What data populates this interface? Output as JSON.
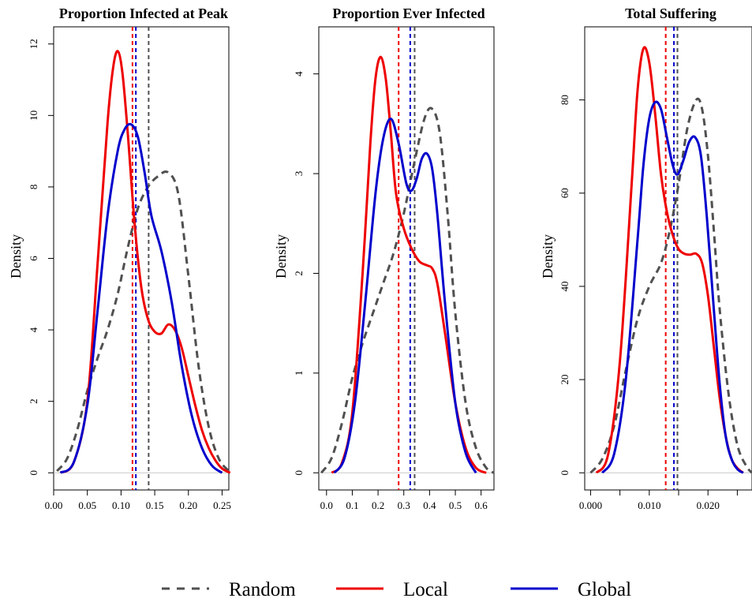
{
  "legend": {
    "items": [
      {
        "key": "random",
        "label": "Random",
        "color": "#505050",
        "dash": true
      },
      {
        "key": "local",
        "label": "Local",
        "color": "#ee0000",
        "dash": false
      },
      {
        "key": "global",
        "label": "Global",
        "color": "#0000cc",
        "dash": false
      }
    ]
  },
  "chart_data": [
    {
      "type": "line",
      "title": "Proportion Infected at Peak",
      "xlabel": "",
      "ylabel": "Density",
      "xlim": [
        0,
        0.26
      ],
      "ylim": [
        0,
        12
      ],
      "xticks": [
        0.0,
        0.05,
        0.1,
        0.15,
        0.2,
        0.25
      ],
      "xtick_labels": [
        "0.00",
        "0.05",
        "0.10",
        "0.15",
        "0.20",
        "0.25"
      ],
      "yticks": [
        0,
        2,
        4,
        6,
        8,
        10,
        12
      ],
      "ytick_labels": [
        "0",
        "2",
        "4",
        "6",
        "8",
        "10",
        "12"
      ],
      "means": {
        "random": 0.141,
        "local": 0.117,
        "global": 0.122
      },
      "series": [
        {
          "key": "random",
          "x": [
            0.005,
            0.02,
            0.035,
            0.05,
            0.065,
            0.08,
            0.095,
            0.11,
            0.125,
            0.14,
            0.155,
            0.17,
            0.185,
            0.2,
            0.215,
            0.23,
            0.245,
            0.26
          ],
          "y": [
            0.05,
            0.4,
            1.2,
            2.3,
            3.2,
            4.0,
            5.0,
            6.3,
            7.4,
            8.0,
            8.3,
            8.4,
            7.8,
            5.5,
            3.0,
            1.3,
            0.4,
            0.05
          ]
        },
        {
          "key": "local",
          "x": [
            0.01,
            0.03,
            0.05,
            0.065,
            0.08,
            0.088,
            0.095,
            0.102,
            0.11,
            0.12,
            0.13,
            0.14,
            0.15,
            0.16,
            0.17,
            0.18,
            0.19,
            0.2,
            0.21,
            0.22,
            0.23,
            0.24,
            0.25,
            0.262
          ],
          "y": [
            0.0,
            0.3,
            2.0,
            5.8,
            9.8,
            11.3,
            11.8,
            11.2,
            9.5,
            7.0,
            5.2,
            4.3,
            3.95,
            3.9,
            4.15,
            4.0,
            3.5,
            2.7,
            1.9,
            1.2,
            0.7,
            0.35,
            0.12,
            0.0
          ]
        },
        {
          "key": "global",
          "x": [
            0.01,
            0.03,
            0.05,
            0.065,
            0.08,
            0.095,
            0.105,
            0.115,
            0.125,
            0.135,
            0.145,
            0.16,
            0.175,
            0.19,
            0.205,
            0.22,
            0.235,
            0.25
          ],
          "y": [
            0.0,
            0.3,
            1.9,
            4.5,
            7.2,
            9.0,
            9.6,
            9.75,
            9.4,
            8.4,
            7.2,
            6.2,
            4.8,
            3.0,
            1.6,
            0.7,
            0.2,
            0.0
          ]
        }
      ]
    },
    {
      "type": "line",
      "title": "Proportion Ever Infected",
      "xlabel": "",
      "ylabel": "Density",
      "xlim": [
        -0.03,
        0.65
      ],
      "ylim": [
        0,
        4.3
      ],
      "xticks": [
        0.0,
        0.1,
        0.2,
        0.3,
        0.4,
        0.5,
        0.6
      ],
      "xtick_labels": [
        "0.0",
        "0.1",
        "0.2",
        "0.3",
        "0.4",
        "0.5",
        "0.6"
      ],
      "yticks": [
        0,
        1,
        2,
        3,
        4
      ],
      "ytick_labels": [
        "0",
        "1",
        "2",
        "3",
        "4"
      ],
      "means": {
        "random": 0.342,
        "local": 0.28,
        "global": 0.325
      },
      "series": [
        {
          "key": "random",
          "x": [
            -0.02,
            0.02,
            0.06,
            0.1,
            0.14,
            0.18,
            0.22,
            0.26,
            0.3,
            0.34,
            0.38,
            0.41,
            0.44,
            0.47,
            0.5,
            0.54,
            0.58,
            0.62,
            0.65
          ],
          "y": [
            0.0,
            0.15,
            0.5,
            0.95,
            1.3,
            1.6,
            1.9,
            2.2,
            2.6,
            3.1,
            3.55,
            3.65,
            3.4,
            2.6,
            1.6,
            0.7,
            0.25,
            0.05,
            0.0
          ]
        },
        {
          "key": "local",
          "x": [
            0.02,
            0.06,
            0.1,
            0.14,
            0.17,
            0.19,
            0.21,
            0.23,
            0.25,
            0.27,
            0.3,
            0.33,
            0.36,
            0.39,
            0.41,
            0.43,
            0.46,
            0.5,
            0.54,
            0.58,
            0.62
          ],
          "y": [
            0.0,
            0.1,
            0.6,
            2.0,
            3.3,
            3.95,
            4.17,
            3.95,
            3.4,
            2.8,
            2.45,
            2.25,
            2.12,
            2.08,
            2.05,
            1.9,
            1.4,
            0.7,
            0.25,
            0.05,
            0.0
          ]
        },
        {
          "key": "global",
          "x": [
            0.03,
            0.07,
            0.11,
            0.15,
            0.19,
            0.22,
            0.25,
            0.28,
            0.31,
            0.33,
            0.35,
            0.37,
            0.39,
            0.41,
            0.43,
            0.46,
            0.5,
            0.54,
            0.58
          ],
          "y": [
            0.0,
            0.15,
            0.7,
            1.7,
            2.8,
            3.35,
            3.55,
            3.3,
            2.9,
            2.83,
            2.95,
            3.15,
            3.2,
            3.05,
            2.6,
            1.7,
            0.7,
            0.2,
            0.0
          ]
        }
      ]
    },
    {
      "type": "line",
      "title": "Total Suffering",
      "xlabel": "",
      "ylabel": "Density",
      "xlim": [
        -0.001,
        0.0275
      ],
      "ylim": [
        0,
        92
      ],
      "xticks": [
        0.0,
        0.005,
        0.01,
        0.015,
        0.02,
        0.025
      ],
      "xtick_labels": [
        "0.000",
        "",
        "0.010",
        "",
        "0.020",
        ""
      ],
      "yticks": [
        0,
        20,
        40,
        60,
        80
      ],
      "ytick_labels": [
        "0",
        "20",
        "40",
        "60",
        "80"
      ],
      "means": {
        "random": 0.0148,
        "local": 0.0128,
        "global": 0.0142
      },
      "series": [
        {
          "key": "random",
          "x": [
            0.0,
            0.002,
            0.004,
            0.006,
            0.008,
            0.01,
            0.012,
            0.0135,
            0.015,
            0.0165,
            0.018,
            0.019,
            0.02,
            0.021,
            0.022,
            0.0235,
            0.025,
            0.0265,
            0.0275
          ],
          "y": [
            0.0,
            3.0,
            10.0,
            22.0,
            33.0,
            40.0,
            45.0,
            52.0,
            62.0,
            74.0,
            80.0,
            78.0,
            68.0,
            52.0,
            35.0,
            17.0,
            6.0,
            1.5,
            0.0
          ]
        },
        {
          "key": "local",
          "x": [
            0.001,
            0.003,
            0.005,
            0.007,
            0.008,
            0.009,
            0.01,
            0.011,
            0.012,
            0.013,
            0.014,
            0.015,
            0.016,
            0.017,
            0.018,
            0.019,
            0.02,
            0.021,
            0.022,
            0.023,
            0.024,
            0.025,
            0.026
          ],
          "y": [
            0.0,
            4.0,
            24.0,
            62.0,
            82.0,
            91.0,
            88.0,
            77.0,
            64.0,
            56.0,
            51.0,
            48.0,
            47.0,
            46.8,
            47.0,
            45.0,
            38.0,
            27.0,
            16.0,
            8.0,
            3.0,
            1.0,
            0.0
          ]
        },
        {
          "key": "global",
          "x": [
            0.002,
            0.004,
            0.006,
            0.008,
            0.009,
            0.01,
            0.011,
            0.012,
            0.013,
            0.014,
            0.0148,
            0.0158,
            0.0168,
            0.0178,
            0.0188,
            0.0198,
            0.021,
            0.022,
            0.023,
            0.024,
            0.025,
            0.026
          ],
          "y": [
            0.0,
            4.0,
            20.0,
            50.0,
            66.0,
            76.0,
            79.5,
            78.0,
            72.0,
            66.0,
            64.0,
            67.0,
            71.0,
            72.0,
            68.0,
            55.0,
            35.0,
            19.0,
            8.0,
            3.0,
            0.8,
            0.0
          ]
        }
      ]
    }
  ]
}
